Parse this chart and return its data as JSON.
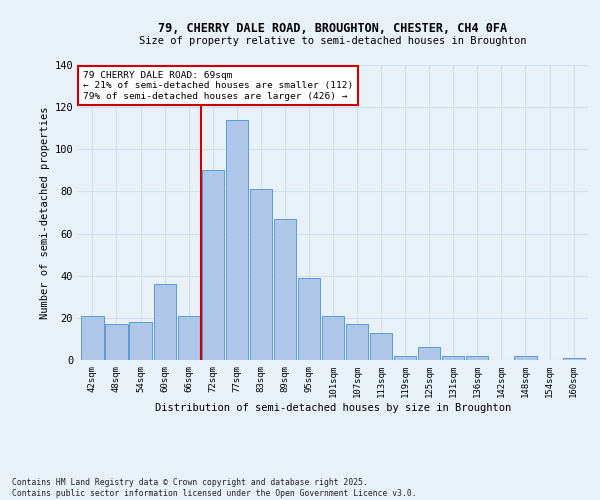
{
  "title1": "79, CHERRY DALE ROAD, BROUGHTON, CHESTER, CH4 0FA",
  "title2": "Size of property relative to semi-detached houses in Broughton",
  "xlabel": "Distribution of semi-detached houses by size in Broughton",
  "ylabel": "Number of semi-detached properties",
  "footnote": "Contains HM Land Registry data © Crown copyright and database right 2025.\nContains public sector information licensed under the Open Government Licence v3.0.",
  "categories": [
    "42sqm",
    "48sqm",
    "54sqm",
    "60sqm",
    "66sqm",
    "72sqm",
    "77sqm",
    "83sqm",
    "89sqm",
    "95sqm",
    "101sqm",
    "107sqm",
    "113sqm",
    "119sqm",
    "125sqm",
    "131sqm",
    "136sqm",
    "142sqm",
    "148sqm",
    "154sqm",
    "160sqm"
  ],
  "values": [
    21,
    17,
    18,
    36,
    21,
    90,
    114,
    81,
    67,
    39,
    21,
    17,
    13,
    2,
    6,
    2,
    2,
    0,
    2,
    0,
    1
  ],
  "bar_color": "#aec6e8",
  "bar_edge_color": "#5b9bd5",
  "grid_color": "#d0e0f0",
  "background_color": "#e8f0f8",
  "vline_x": 4.5,
  "vline_color": "#cc0000",
  "annotation_title": "79 CHERRY DALE ROAD: 69sqm",
  "annotation_line2": "← 21% of semi-detached houses are smaller (112)",
  "annotation_line3": "79% of semi-detached houses are larger (426) →",
  "annotation_box_color": "#ffffff",
  "annotation_edge_color": "#cc0000",
  "ylim": [
    0,
    140
  ],
  "yticks": [
    0,
    20,
    40,
    60,
    80,
    100,
    120,
    140
  ]
}
